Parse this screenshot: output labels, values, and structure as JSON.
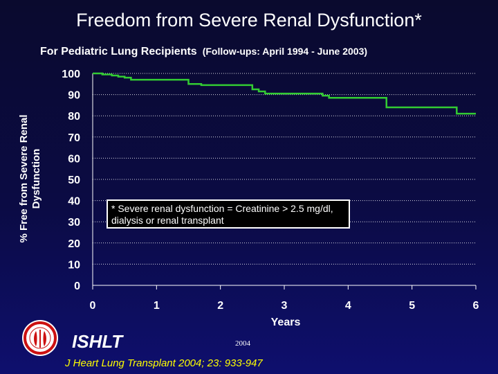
{
  "slide": {
    "title": "Freedom from Severe Renal Dysfunction*",
    "subtitle": "For Pediatric Lung Recipients",
    "subtitle_small": "(Follow-ups: April 1994 - June 2003)",
    "footnote": "* Severe renal dysfunction = Creatinine > 2.5 mg/dl, dialysis or renal transplant",
    "logo_text": "ISHLT",
    "year": "2004",
    "citation": "J Heart Lung Transplant 2004; 23: 933-947",
    "colors": {
      "line": "#33cc33",
      "citation": "#ffff00",
      "grid": "#ffffff"
    }
  },
  "chart_data": {
    "type": "line",
    "title": "Freedom from Severe Renal Dysfunction*",
    "xlabel": "Years",
    "ylabel_lines": [
      "% Free from Severe Renal",
      "Dysfunction"
    ],
    "xlim": [
      0,
      6
    ],
    "ylim": [
      0,
      100
    ],
    "x_ticks": [
      "0",
      "1",
      "2",
      "3",
      "4",
      "5",
      "6"
    ],
    "y_ticks": [
      "0",
      "10",
      "20",
      "30",
      "40",
      "50",
      "60",
      "70",
      "80",
      "90",
      "100"
    ],
    "grid": "horizontal dotted",
    "step": true,
    "series": [
      {
        "x": [
          0,
          0.15,
          0.3,
          0.4,
          0.5,
          0.6,
          1.4,
          1.5,
          1.7,
          2.1,
          2.2,
          2.4,
          2.5,
          2.6,
          2.7,
          3.5,
          3.6,
          3.7,
          4.2,
          4.5,
          4.6,
          5.6,
          5.7,
          6.0
        ],
        "y": [
          100,
          99.5,
          99,
          98.5,
          98,
          97,
          97,
          95,
          94.5,
          94.5,
          94.5,
          94.5,
          92.5,
          91.5,
          90.5,
          90.5,
          89.5,
          88.5,
          88.5,
          88.5,
          84,
          84,
          81,
          81
        ]
      }
    ]
  }
}
